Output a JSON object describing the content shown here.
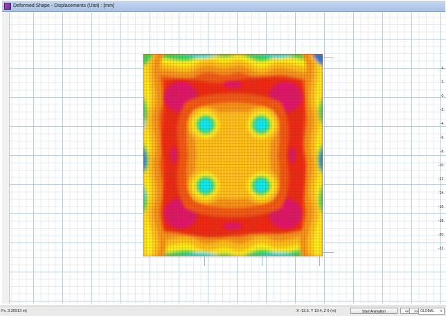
{
  "window": {
    "title": "Deformed Shape - Displacements (Utot) : [mm]",
    "title_icon": "deformed-shape-icon"
  },
  "legend": {
    "values": [
      "4.",
      "2.",
      "0.",
      "-2.",
      "-4.",
      "-6.",
      "-8.",
      "-10.",
      "-12.",
      "-14.",
      "-16.",
      "-18.",
      "-20.",
      "-22."
    ]
  },
  "contour_colors": {
    "magenta": "#e0126d",
    "red": "#ee2a12",
    "orange": "#f25a18",
    "orange_light": "#f7951a",
    "yellow_orange": "#ffc21a",
    "yellow": "#fff21f",
    "green": "#2ee05a",
    "cyan": "#18e8f0",
    "blue": "#1a7ee0"
  },
  "statusbar": {
    "left_text": "Fx, 3.30913 m]",
    "coords": "X -12.5, Y 19.4, Z 0  (m)",
    "animation_button": "Start Animation",
    "prev_button": "<<",
    "next_button": ">>",
    "coordinate_system": "GLOBAL"
  }
}
